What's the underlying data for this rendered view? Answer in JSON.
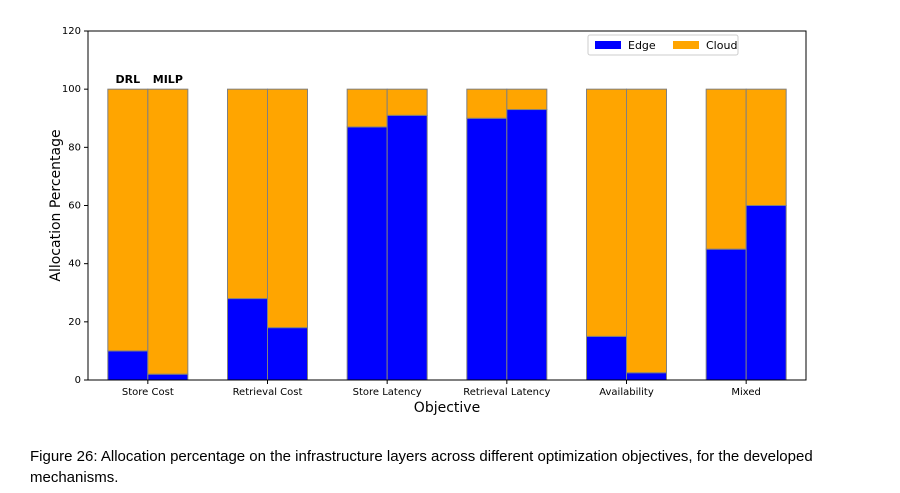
{
  "chart_data": {
    "type": "bar",
    "stacked": true,
    "grouped": true,
    "categories": [
      "Store Cost",
      "Retrieval Cost",
      "Store Latency",
      "Retrieval Latency",
      "Availability",
      "Mixed"
    ],
    "methods": [
      "DRL",
      "MILP"
    ],
    "series": [
      {
        "name": "Edge",
        "color": "#0000ff",
        "values": {
          "DRL": [
            10,
            28,
            87,
            90,
            15,
            45
          ],
          "MILP": [
            2,
            18,
            91,
            93,
            2.5,
            60
          ]
        }
      },
      {
        "name": "Cloud",
        "color": "#ffa500",
        "values": {
          "DRL": [
            90,
            72,
            13,
            10,
            85,
            55
          ],
          "MILP": [
            98,
            82,
            9,
            7,
            97.5,
            40
          ]
        }
      }
    ],
    "xlabel": "Objective",
    "ylabel": "Allocation Percentage",
    "ylim": [
      0,
      120
    ],
    "yticks": [
      0,
      20,
      40,
      60,
      80,
      100,
      120
    ],
    "grid": false,
    "legend_position": "top-right",
    "method_label_position": "above-first-group"
  },
  "caption": "Figure 26: Allocation percentage on the infrastructure layers across different optimization objectives, for the developed mechanisms."
}
